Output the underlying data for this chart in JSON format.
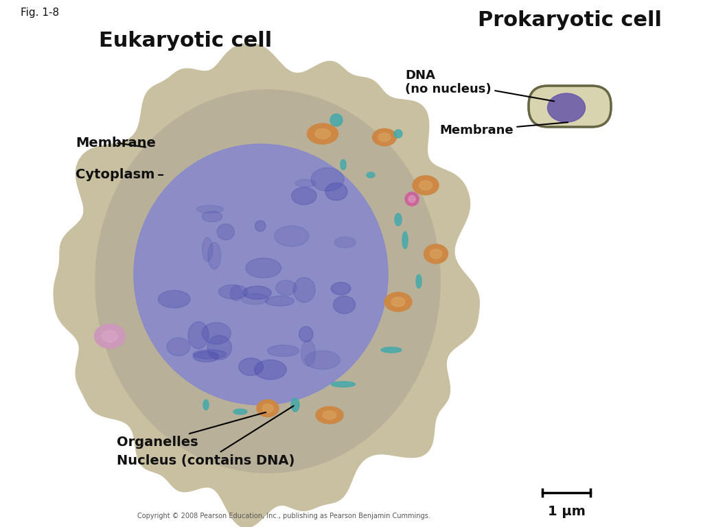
{
  "fig_label": "Fig. 1-8",
  "title_eukaryotic": "Eukaryotic cell",
  "title_prokaryotic": "Prokaryotic cell",
  "copyright": "Copyright © 2008 Pearson Education, Inc., publishing as Pearson Benjamin Cummings.",
  "scale_label": "1 µm",
  "labels": {
    "membrane_euk": "Membrane",
    "cytoplasm": "Cytoplasm",
    "organelles": "Organelles",
    "nucleus": "Nucleus (contains DNA)",
    "dna_prok": "DNA\n(no nucleus)",
    "membrane_prok": "Membrane"
  },
  "background_color": "#ffffff",
  "cell_body_color": "#c8c0a0",
  "nucleus_color_inner": "#7a7ab8",
  "nucleus_color_outer": "#8888cc",
  "prokaryote_body_color": "#d8d4b0",
  "prokaryote_dna_color": "#6655aa",
  "organelle_orange_color": "#cc8844",
  "organelle_teal_color": "#44aaaa",
  "organelle_pink_color": "#cc6699",
  "text_color": "#111111"
}
